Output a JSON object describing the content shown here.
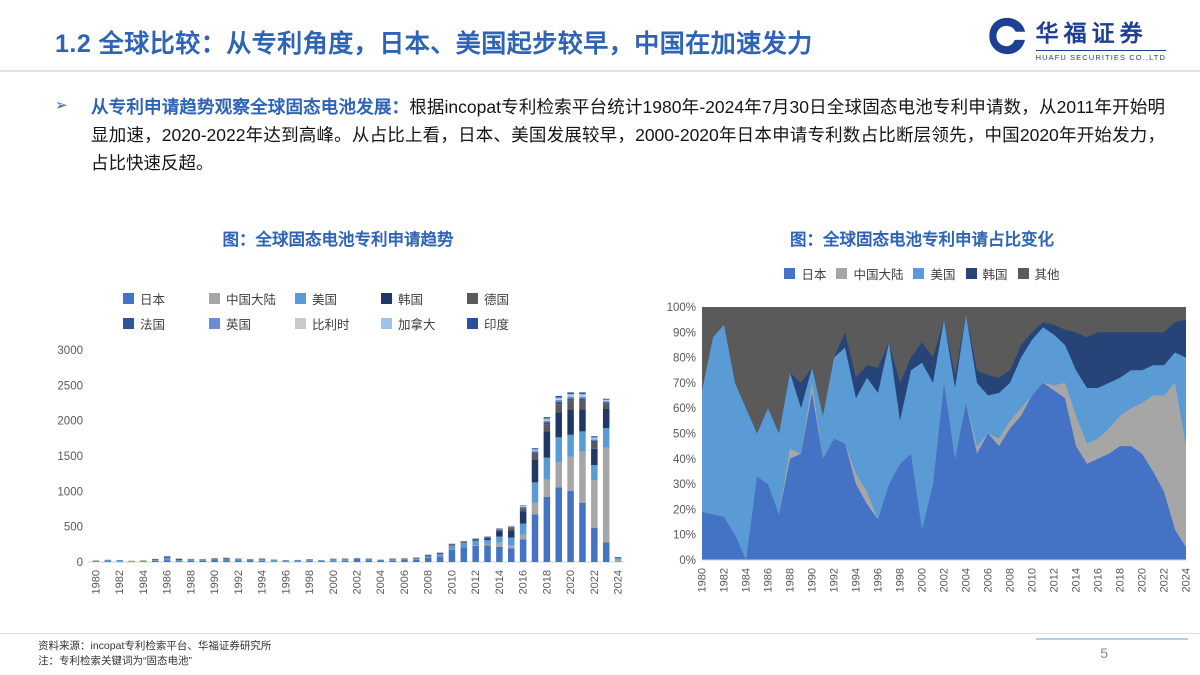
{
  "header": {
    "title": "1.2 全球比较：从专利角度，日本、美国起步较早，中国在加速发力",
    "logo_cn": "华福证券",
    "logo_en": "HUAFU SECURITIES CO.,LTD"
  },
  "summary": {
    "bullet": "➢",
    "lead": "从专利申请趋势观察全球固态电池发展：",
    "body": "根据incopat专利检索平台统计1980年-2024年7月30日全球固态电池专利申请数，从2011年开始明显加速，2020-2022年达到高峰。从占比上看，日本、美国发展较早，2000-2020年日本申请专利数占比断层领先，中国2020年开始发力，占比快速反超。"
  },
  "footer": {
    "source": "资料来源：incopat专利检索平台、华福证券研究所",
    "note": "注：专利检索关键词为“固态电池”",
    "page": "5"
  },
  "colors": {
    "accent_blue": "#2E63B5",
    "logo_navy": "#1D3F94",
    "axis_text": "#595959",
    "axis_line": "#D2D2D2"
  },
  "chart_data": [
    {
      "type": "bar",
      "stacked": true,
      "title": "图：全球固态电池专利申请趋势",
      "x_start": 1980,
      "x_end": 2024,
      "x_tick_labels": [
        "1980",
        "1982",
        "1984",
        "1986",
        "1988",
        "1990",
        "1992",
        "1994",
        "1996",
        "1998",
        "2000",
        "2002",
        "2004",
        "2006",
        "2008",
        "2010",
        "2012",
        "2014",
        "2016",
        "2018",
        "2020",
        "2022",
        "2024"
      ],
      "ylim": [
        0,
        3000
      ],
      "ytick_step": 500,
      "grid": false,
      "legend_position": "top",
      "series": [
        {
          "name": "日本",
          "color": "#4472C4",
          "values": [
            5,
            7,
            5,
            2,
            0,
            16,
            27,
            10,
            20,
            19,
            40,
            26,
            26,
            21,
            17,
            9,
            5,
            10,
            17,
            13,
            6,
            17,
            42,
            22,
            22,
            23,
            30,
            32,
            57,
            80,
            172,
            210,
            228,
            234,
            216,
            194,
            320,
            676,
            923,
            1058,
            1008,
            840,
            481,
            277,
            4
          ]
        },
        {
          "name": "中国大陆",
          "color": "#A6A6A6",
          "values": [
            0,
            0,
            0,
            0,
            0,
            0,
            0,
            0,
            2,
            0,
            2,
            0,
            0,
            0,
            2,
            2,
            0,
            0,
            0,
            0,
            0,
            0,
            0,
            0,
            0,
            2,
            0,
            2,
            3,
            4,
            0,
            0,
            7,
            22,
            58,
            41,
            64,
            161,
            246,
            353,
            480,
            720,
            676,
            1340,
            28
          ]
        },
        {
          "name": "美国",
          "color": "#5B9BD5",
          "values": [
            12,
            25,
            23,
            12,
            15,
            9,
            27,
            18,
            15,
            8,
            4,
            11,
            18,
            17,
            17,
            18,
            15,
            20,
            8,
            10,
            33,
            22,
            15,
            15,
            12,
            14,
            9,
            13,
            17,
            28,
            58,
            66,
            68,
            55,
            86,
            112,
            160,
            290,
            308,
            353,
            312,
            288,
            214,
            277,
            25
          ]
        },
        {
          "name": "韩国",
          "color": "#203864",
          "values": [
            0,
            0,
            0,
            0,
            0,
            0,
            0,
            0,
            0,
            5,
            0,
            0,
            0,
            3,
            4,
            2,
            3,
            0,
            7,
            2,
            4,
            6,
            0,
            3,
            0,
            3,
            5,
            4,
            6,
            7,
            8,
            6,
            14,
            22,
            72,
            102,
            176,
            322,
            369,
            353,
            360,
            312,
            231,
            277,
            10
          ]
        },
        {
          "name": "德国",
          "color": "#5A5A5A",
          "values": [
            5,
            2,
            2,
            3,
            6,
            14,
            18,
            15,
            7,
            7,
            8,
            15,
            6,
            2,
            9,
            5,
            3,
            2,
            7,
            3,
            4,
            5,
            2,
            8,
            1,
            7,
            8,
            10,
            14,
            11,
            14,
            9,
            12,
            16,
            24,
            31,
            40,
            81,
            102,
            117,
            120,
            120,
            89,
            70,
            2
          ]
        },
        {
          "name": "法国",
          "color": "#2F5597",
          "values": [
            1,
            0,
            0,
            1,
            2,
            4,
            6,
            4,
            2,
            2,
            2,
            5,
            2,
            1,
            2,
            2,
            1,
            2,
            2,
            1,
            1,
            2,
            1,
            2,
            0,
            2,
            2,
            3,
            4,
            3,
            4,
            3,
            3,
            5,
            7,
            9,
            12,
            24,
            31,
            35,
            36,
            36,
            27,
            21,
            1
          ]
        },
        {
          "name": "英国",
          "color": "#6D8BD2",
          "values": [
            1,
            0,
            0,
            1,
            1,
            2,
            4,
            3,
            1,
            2,
            2,
            4,
            2,
            0,
            2,
            1,
            2,
            1,
            2,
            0,
            1,
            2,
            0,
            2,
            0,
            2,
            2,
            2,
            3,
            2,
            3,
            2,
            2,
            3,
            5,
            6,
            8,
            16,
            20,
            23,
            24,
            24,
            18,
            14,
            0
          ]
        },
        {
          "name": "比利时",
          "color": "#C9C9C9",
          "values": [
            0,
            0,
            0,
            0,
            0,
            1,
            2,
            2,
            1,
            0,
            0,
            2,
            0,
            0,
            1,
            0,
            0,
            0,
            1,
            0,
            0,
            0,
            0,
            1,
            0,
            1,
            2,
            2,
            1,
            1,
            1,
            1,
            1,
            2,
            2,
            3,
            4,
            8,
            10,
            12,
            12,
            12,
            9,
            7,
            0
          ]
        },
        {
          "name": "加拿大",
          "color": "#9DC3E6",
          "values": [
            1,
            1,
            0,
            1,
            1,
            3,
            4,
            2,
            1,
            2,
            1,
            1,
            1,
            1,
            1,
            1,
            1,
            0,
            1,
            1,
            1,
            0,
            0,
            2,
            0,
            1,
            2,
            1,
            3,
            2,
            3,
            2,
            3,
            3,
            5,
            6,
            8,
            16,
            21,
            23,
            24,
            24,
            18,
            14,
            0
          ]
        },
        {
          "name": "印度",
          "color": "#2B4F9E",
          "values": [
            0,
            0,
            0,
            0,
            0,
            1,
            2,
            1,
            1,
            0,
            1,
            1,
            0,
            0,
            0,
            0,
            0,
            0,
            0,
            0,
            0,
            1,
            0,
            0,
            0,
            0,
            0,
            1,
            2,
            2,
            2,
            1,
            2,
            3,
            5,
            6,
            8,
            16,
            20,
            23,
            24,
            24,
            17,
            13,
            0
          ]
        }
      ]
    },
    {
      "type": "area",
      "stacked": true,
      "percent": true,
      "title": "图：全球固态电池专利申请占比变化",
      "x_start": 1980,
      "x_end": 2024,
      "x_tick_labels": [
        "1980",
        "1982",
        "1984",
        "1986",
        "1988",
        "1990",
        "1992",
        "1994",
        "1996",
        "1998",
        "2000",
        "2002",
        "2004",
        "2006",
        "2008",
        "2010",
        "2012",
        "2014",
        "2016",
        "2018",
        "2020",
        "2022",
        "2024"
      ],
      "ylim": [
        0,
        100
      ],
      "ytick_step": 10,
      "ytick_suffix": "%",
      "grid": false,
      "legend_position": "top",
      "series": [
        {
          "name": "日本",
          "color": "#4472C4",
          "values": [
            19,
            18,
            17,
            10,
            0,
            33,
            30,
            18,
            40,
            42,
            66,
            40,
            48,
            46,
            30,
            22,
            16,
            30,
            38,
            42,
            12,
            30,
            70,
            40,
            62,
            42,
            50,
            45,
            52,
            57,
            65,
            70,
            67,
            64,
            45,
            38,
            40,
            42,
            45,
            45,
            42,
            35,
            27,
            12,
            5
          ]
        },
        {
          "name": "中国大陆",
          "color": "#A6A6A6",
          "values": [
            0,
            0,
            0,
            0,
            0,
            0,
            0,
            0,
            4,
            0,
            4,
            0,
            0,
            0,
            4,
            5,
            0,
            0,
            0,
            0,
            0,
            0,
            0,
            0,
            0,
            3,
            0,
            3,
            3,
            3,
            0,
            0,
            2,
            6,
            12,
            8,
            8,
            10,
            12,
            15,
            20,
            30,
            38,
            58,
            40
          ]
        },
        {
          "name": "美国",
          "color": "#5B9BD5",
          "values": [
            48,
            70,
            76,
            60,
            60,
            17,
            30,
            32,
            30,
            18,
            6,
            17,
            32,
            38,
            30,
            45,
            50,
            56,
            17,
            33,
            66,
            40,
            25,
            28,
            35,
            25,
            15,
            18,
            15,
            20,
            22,
            22,
            20,
            15,
            18,
            22,
            20,
            18,
            15,
            15,
            13,
            12,
            12,
            12,
            35
          ]
        },
        {
          "name": "韩国",
          "color": "#264478",
          "values": [
            0,
            0,
            0,
            0,
            0,
            0,
            0,
            0,
            0,
            10,
            0,
            0,
            0,
            6,
            8,
            5,
            10,
            0,
            15,
            5,
            8,
            10,
            0,
            5,
            0,
            5,
            8,
            6,
            5,
            5,
            3,
            2,
            4,
            6,
            15,
            20,
            22,
            20,
            18,
            15,
            15,
            13,
            13,
            12,
            15
          ]
        },
        {
          "name": "其他",
          "color": "#5A5A5A",
          "values": [
            33,
            12,
            7,
            30,
            40,
            50,
            40,
            50,
            26,
            30,
            24,
            43,
            20,
            10,
            28,
            23,
            24,
            14,
            30,
            20,
            14,
            20,
            5,
            27,
            3,
            25,
            27,
            28,
            25,
            15,
            10,
            6,
            7,
            9,
            10,
            12,
            10,
            10,
            10,
            10,
            10,
            10,
            10,
            6,
            5
          ]
        }
      ]
    }
  ]
}
